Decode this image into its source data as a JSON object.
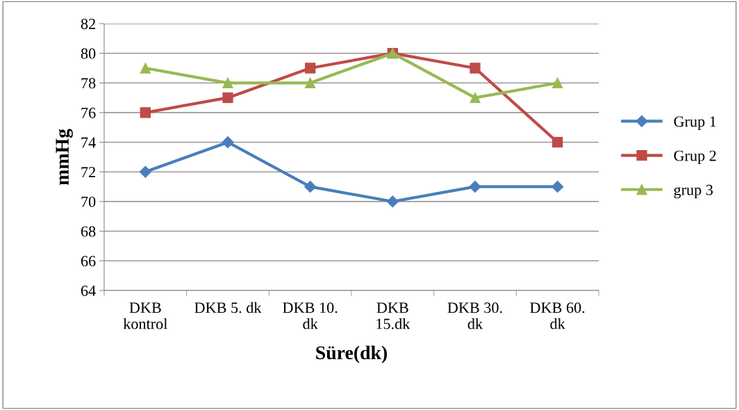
{
  "chart_data": {
    "type": "line",
    "xlabel": "Süre(dk)",
    "ylabel": "mmHg",
    "categories": [
      "DKB\nkontrol",
      "DKB 5. dk",
      "DKB 10.\ndk",
      "DKB\n15.dk",
      "DKB 30.\ndk",
      "DKB 60.\ndk"
    ],
    "series": [
      {
        "name": "Grup 1",
        "color": "#4a7ebb",
        "marker": "diamond",
        "values": [
          72,
          74,
          71,
          70,
          71,
          71
        ]
      },
      {
        "name": "Grup 2",
        "color": "#be4b48",
        "marker": "square",
        "values": [
          76,
          77,
          79,
          80,
          79,
          74
        ]
      },
      {
        "name": "grup 3",
        "color": "#98b954",
        "marker": "triangle",
        "values": [
          79,
          78,
          78,
          80,
          77,
          78
        ]
      }
    ],
    "ylim": [
      64,
      82
    ],
    "yticks": [
      64,
      66,
      68,
      70,
      72,
      74,
      76,
      78,
      80,
      82
    ],
    "grid": "y",
    "legend": "right",
    "line_style": "solid"
  }
}
